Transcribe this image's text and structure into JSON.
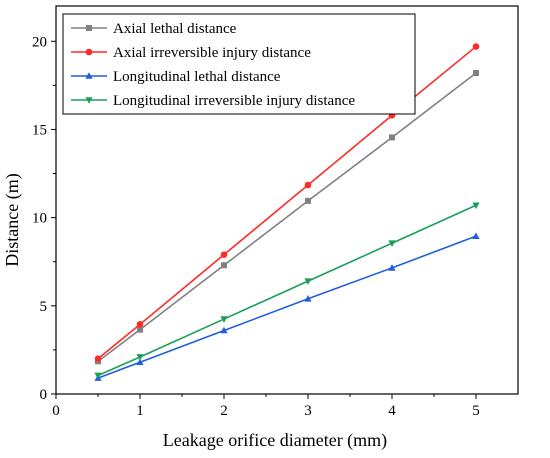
{
  "chart_data": {
    "type": "line",
    "title": "",
    "xlabel": "Leakage orifice diameter (mm)",
    "ylabel": "Distance (m)",
    "xlim": [
      0,
      5.5
    ],
    "ylim": [
      0,
      22
    ],
    "x_ticks": [
      0,
      1,
      2,
      3,
      4,
      5
    ],
    "y_ticks": [
      0,
      5,
      10,
      15,
      20
    ],
    "grid": false,
    "legend_position": "top-left",
    "x": [
      0.5,
      1,
      2,
      3,
      4,
      5
    ],
    "series": [
      {
        "name": "Axial lethal distance",
        "color": "#808080",
        "marker": "square",
        "values": [
          1.85,
          3.65,
          7.3,
          10.95,
          14.55,
          18.2
        ]
      },
      {
        "name": "Axial irreversible injury distance",
        "color": "#ff2a2a",
        "marker": "circle",
        "values": [
          2.0,
          3.95,
          7.9,
          11.85,
          15.8,
          19.7
        ]
      },
      {
        "name": "Longitudinal lethal distance",
        "color": "#1f5fdc",
        "marker": "triangle-up",
        "values": [
          0.9,
          1.8,
          3.6,
          5.4,
          7.15,
          8.95
        ]
      },
      {
        "name": "Longitudinal irreversible injury distance",
        "color": "#1a9e5a",
        "marker": "triangle-down",
        "values": [
          1.05,
          2.1,
          4.25,
          6.4,
          8.55,
          10.7
        ]
      }
    ]
  }
}
